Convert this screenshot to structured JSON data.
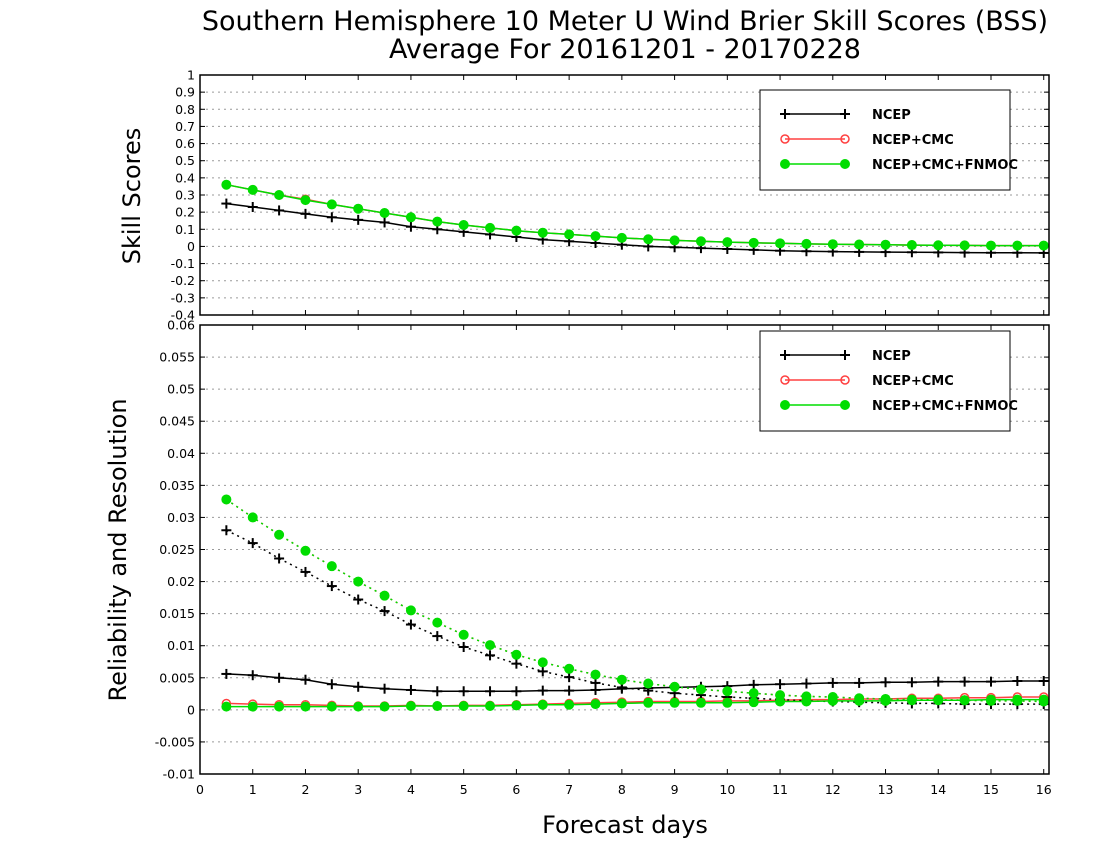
{
  "title_line1": "Southern Hemisphere 10 Meter U Wind Brier Skill Scores (BSS)",
  "title_line2": "Average For 20161201 - 20170228",
  "xlabel": "Forecast days",
  "colors": {
    "NCEP": "#000000",
    "NCEP+CMC": "#ff4040",
    "NCEP+CMC+FNMOC": "#00dd00"
  },
  "chart_data": [
    {
      "type": "line",
      "ylabel": "Skill Scores",
      "xlim": [
        0,
        16.1
      ],
      "ylim": [
        -0.4,
        1
      ],
      "xticks": [
        0,
        1,
        2,
        3,
        4,
        5,
        6,
        7,
        8,
        9,
        10,
        11,
        12,
        13,
        14,
        15,
        16
      ],
      "yticks": [
        -0.4,
        -0.3,
        -0.2,
        -0.1,
        0,
        0.1,
        0.2,
        0.3,
        0.4,
        0.5,
        0.6,
        0.7,
        0.8,
        0.9,
        1
      ],
      "ytick_labels": [
        "-0.4",
        "-0.3",
        "-0.2",
        "-0.1",
        "0",
        "0.1",
        "0.2",
        "0.3",
        "0.4",
        "0.5",
        "0.6",
        "0.7",
        "0.8",
        "0.9",
        "1"
      ],
      "grid": true,
      "legend": "top-right",
      "x": [
        0.5,
        1,
        1.5,
        2,
        2.5,
        3,
        3.5,
        4,
        4.5,
        5,
        5.5,
        6,
        6.5,
        7,
        7.5,
        8,
        8.5,
        9,
        9.5,
        10,
        10.5,
        11,
        11.5,
        12,
        12.5,
        13,
        13.5,
        14,
        14.5,
        15,
        15.5,
        16
      ],
      "series": [
        {
          "name": "NCEP",
          "marker": "plus",
          "style": "solid",
          "values": [
            0.25,
            0.23,
            0.21,
            0.19,
            0.17,
            0.155,
            0.14,
            0.115,
            0.1,
            0.085,
            0.07,
            0.055,
            0.04,
            0.03,
            0.02,
            0.01,
            0.0,
            -0.005,
            -0.01,
            -0.015,
            -0.02,
            -0.025,
            -0.028,
            -0.03,
            -0.032,
            -0.033,
            -0.034,
            -0.035,
            -0.036,
            -0.037,
            -0.037,
            -0.038
          ]
        },
        {
          "name": "NCEP+CMC",
          "marker": "open-circle",
          "style": "solid",
          "values": [
            0.36,
            0.33,
            0.3,
            0.275,
            0.245,
            0.22,
            0.195,
            0.17,
            0.145,
            0.125,
            0.108,
            0.092,
            0.08,
            0.07,
            0.06,
            0.05,
            0.042,
            0.035,
            0.03,
            0.025,
            0.021,
            0.018,
            0.015,
            0.013,
            0.011,
            0.01,
            0.008,
            0.007,
            0.006,
            0.005,
            0.005,
            0.005
          ]
        },
        {
          "name": "NCEP+CMC+FNMOC",
          "marker": "filled-circle",
          "style": "solid",
          "values": [
            0.36,
            0.33,
            0.3,
            0.27,
            0.245,
            0.22,
            0.195,
            0.17,
            0.145,
            0.125,
            0.108,
            0.092,
            0.08,
            0.07,
            0.06,
            0.05,
            0.042,
            0.035,
            0.03,
            0.025,
            0.021,
            0.018,
            0.015,
            0.013,
            0.011,
            0.01,
            0.008,
            0.007,
            0.006,
            0.005,
            0.005,
            0.005
          ]
        }
      ]
    },
    {
      "type": "line",
      "ylabel": "Reliability and Resolution",
      "xlim": [
        0,
        16.1
      ],
      "ylim": [
        -0.01,
        0.06
      ],
      "xticks": [
        0,
        1,
        2,
        3,
        4,
        5,
        6,
        7,
        8,
        9,
        10,
        11,
        12,
        13,
        14,
        15,
        16
      ],
      "yticks": [
        -0.01,
        -0.005,
        0,
        0.005,
        0.01,
        0.015,
        0.02,
        0.025,
        0.03,
        0.035,
        0.04,
        0.045,
        0.05,
        0.055,
        0.06
      ],
      "ytick_labels": [
        "-0.01",
        "-0.005",
        "0",
        "0.005",
        "0.01",
        "0.015",
        "0.02",
        "0.025",
        "0.03",
        "0.035",
        "0.04",
        "0.045",
        "0.05",
        "0.055",
        "0.06"
      ],
      "grid": true,
      "legend": "top-right",
      "x": [
        0.5,
        1,
        1.5,
        2,
        2.5,
        3,
        3.5,
        4,
        4.5,
        5,
        5.5,
        6,
        6.5,
        7,
        7.5,
        8,
        8.5,
        9,
        9.5,
        10,
        10.5,
        11,
        11.5,
        12,
        12.5,
        13,
        13.5,
        14,
        14.5,
        15,
        15.5,
        16
      ],
      "series": [
        {
          "name": "NCEP",
          "legend": true,
          "marker": "plus",
          "style": "solid",
          "values": [
            0.0056,
            0.0054,
            0.005,
            0.0047,
            0.004,
            0.0036,
            0.0033,
            0.0031,
            0.0029,
            0.0029,
            0.0029,
            0.0029,
            0.003,
            0.003,
            0.0031,
            0.0033,
            0.0034,
            0.0035,
            0.0036,
            0.0037,
            0.0039,
            0.004,
            0.0041,
            0.0042,
            0.0042,
            0.0043,
            0.0043,
            0.0044,
            0.0044,
            0.0044,
            0.0045,
            0.0045
          ]
        },
        {
          "name": "NCEP",
          "legend": false,
          "marker": "plus",
          "style": "dotted",
          "values": [
            0.028,
            0.026,
            0.0236,
            0.0215,
            0.0193,
            0.0172,
            0.0154,
            0.0133,
            0.0115,
            0.0098,
            0.0085,
            0.0072,
            0.006,
            0.0051,
            0.0042,
            0.0035,
            0.003,
            0.0026,
            0.0023,
            0.002,
            0.0018,
            0.0016,
            0.0014,
            0.0013,
            0.0012,
            0.0011,
            0.001,
            0.001,
            0.0009,
            0.0009,
            0.0009,
            0.0009
          ]
        },
        {
          "name": "NCEP+CMC",
          "legend": true,
          "marker": "open-circle",
          "style": "solid",
          "values": [
            0.001,
            0.0009,
            0.0008,
            0.0008,
            0.0007,
            0.0006,
            0.0006,
            0.0007,
            0.0006,
            0.0007,
            0.0007,
            0.0008,
            0.0009,
            0.001,
            0.0011,
            0.0012,
            0.0013,
            0.0013,
            0.0013,
            0.0014,
            0.0014,
            0.0015,
            0.0016,
            0.0016,
            0.0017,
            0.0017,
            0.0018,
            0.0018,
            0.0019,
            0.0019,
            0.002,
            0.002
          ]
        },
        {
          "name": "NCEP+CMC",
          "legend": false,
          "marker": "open-circle",
          "style": "dotted",
          "values": [
            0.0328,
            0.03,
            0.0273,
            0.0248,
            0.0224,
            0.02,
            0.0178,
            0.0155,
            0.0136,
            0.0117,
            0.0101,
            0.0086,
            0.0074,
            0.0064,
            0.0055,
            0.0047,
            0.0041,
            0.0036,
            0.0032,
            0.0029,
            0.0026,
            0.0023,
            0.0021,
            0.002,
            0.0018,
            0.0017,
            0.0016,
            0.0016,
            0.0015,
            0.0014,
            0.0014,
            0.0013
          ]
        },
        {
          "name": "NCEP+CMC+FNMOC",
          "legend": true,
          "marker": "filled-circle",
          "style": "solid",
          "values": [
            0.0005,
            0.0005,
            0.0005,
            0.0005,
            0.0005,
            0.0005,
            0.0005,
            0.0006,
            0.0006,
            0.0006,
            0.0006,
            0.0007,
            0.0008,
            0.0008,
            0.0009,
            0.001,
            0.0011,
            0.0011,
            0.0011,
            0.0011,
            0.0012,
            0.0013,
            0.0013,
            0.0014,
            0.0014,
            0.0014,
            0.0015,
            0.0015,
            0.0015,
            0.0016,
            0.0016,
            0.0016
          ]
        },
        {
          "name": "NCEP+CMC+FNMOC",
          "legend": false,
          "marker": "filled-circle",
          "style": "dotted",
          "values": [
            0.0328,
            0.03,
            0.0273,
            0.0248,
            0.0224,
            0.02,
            0.0178,
            0.0155,
            0.0136,
            0.0117,
            0.0101,
            0.0086,
            0.0074,
            0.0064,
            0.0055,
            0.0047,
            0.0041,
            0.0036,
            0.0032,
            0.0029,
            0.0026,
            0.0023,
            0.0021,
            0.002,
            0.0018,
            0.0017,
            0.0016,
            0.0016,
            0.0015,
            0.0014,
            0.0014,
            0.0013
          ]
        }
      ]
    }
  ]
}
